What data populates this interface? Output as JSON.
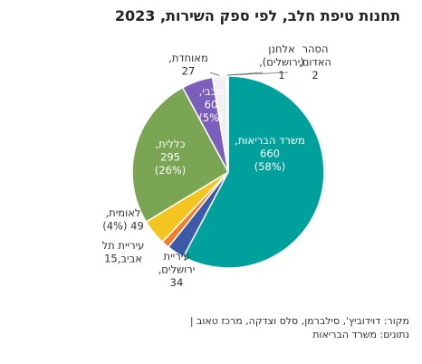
{
  "title": "תחנות טיפת חלב, לפי ספק השירות, 2023",
  "chart_data": {
    "type": "pie",
    "title": "תחנות טיפת חלב, לפי ספק השירות, 2023",
    "slices": [
      {
        "name": "משרד הבריאות",
        "value": 660,
        "percent": "(58%)",
        "color": "#00a19c"
      },
      {
        "name": "עיריית ירושלים",
        "value": 34,
        "percent": "",
        "color": "#3d5aa8"
      },
      {
        "name": "עיריית תל אביב",
        "value": 15,
        "percent": "",
        "color": "#f07d2a"
      },
      {
        "name": "לאומית",
        "value": 49,
        "percent": "(4%)",
        "color": "#f5c51f"
      },
      {
        "name": "כללית",
        "value": 295,
        "percent": "(26%)",
        "color": "#7aa653"
      },
      {
        "name": "מכבי",
        "value": 60,
        "percent": "(5%)",
        "color": "#7c5fbd"
      },
      {
        "name": "מאוחדת",
        "value": 27,
        "percent": "",
        "color": "#f0f0f0"
      },
      {
        "name": "אלחנן (ירושלים)",
        "value": 1,
        "percent": "",
        "color": "#0a5c5f"
      },
      {
        "name": "הסהר האדום",
        "value": 2,
        "percent": "",
        "color": "#1e6e6b"
      }
    ],
    "labels": [
      {
        "lines": [
          "משרד הבריאות,",
          "660",
          "(58%)"
        ]
      },
      {
        "lines": [
          "עיריית",
          "ירושלים,",
          "34"
        ]
      },
      {
        "lines": [
          "עיריית תל",
          "אביב,15"
        ]
      },
      {
        "lines": [
          "לאומית,",
          "49 (4%)"
        ]
      },
      {
        "lines": [
          "כללית,",
          "295",
          "(26%)"
        ]
      },
      {
        "lines": [
          "מכבי,",
          "60",
          "(5%)"
        ]
      },
      {
        "lines": [
          "מאוחדת,",
          "27"
        ]
      },
      {
        "lines": [
          "אלחנן",
          "(ירושלים),",
          "1"
        ]
      },
      {
        "lines": [
          "הסהר",
          "האדום,",
          "2"
        ]
      }
    ]
  },
  "source": {
    "line1": "מקור: דוידוביץ', סילברמן, סלס וצדקה, מרכז טאוב |",
    "line2": "נתונים: משרד הבריאות"
  }
}
